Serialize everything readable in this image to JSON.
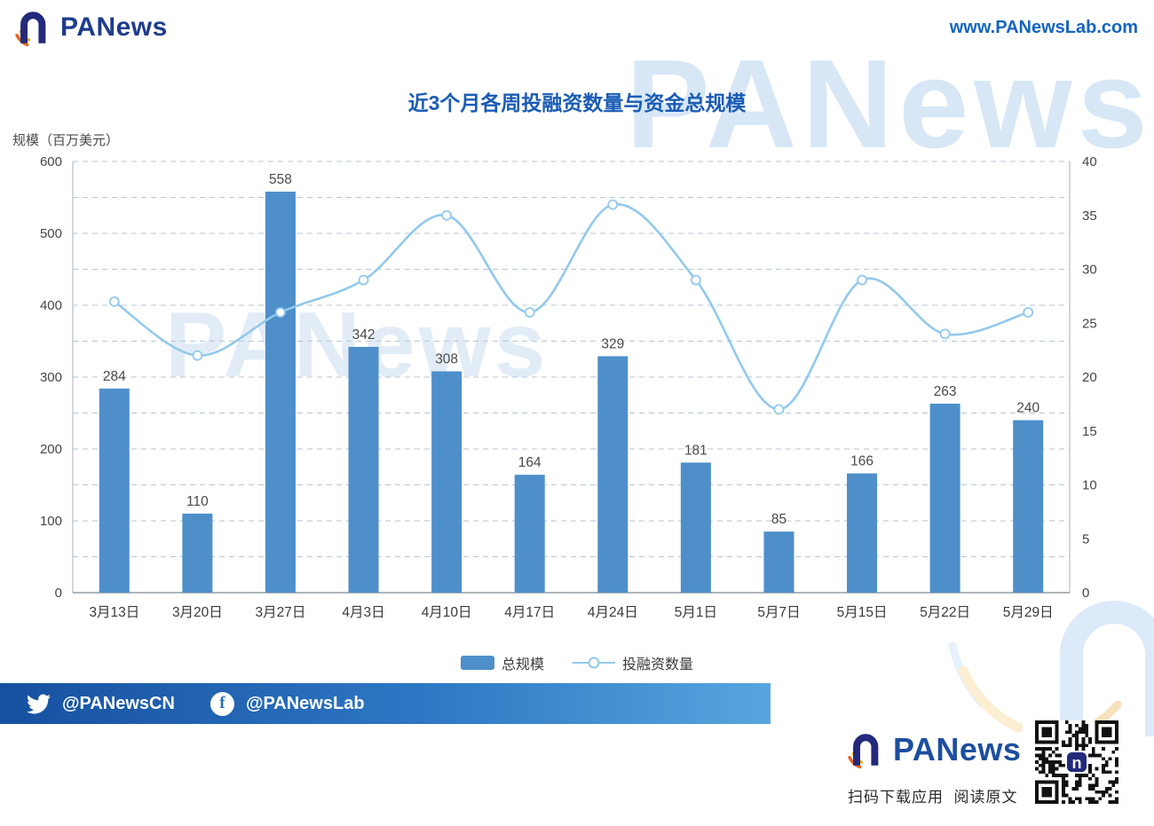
{
  "header": {
    "brand": "PANews",
    "url": "www.PANewsLab.com"
  },
  "watermarks": {
    "top": "PANews",
    "chart": "PANews"
  },
  "chart_data": {
    "type": "bar",
    "title": "近3个月各周投融资数量与资金总规模",
    "grid": true,
    "legend_position": "bottom",
    "left_axis": {
      "unit_label": "规模（百万美元）",
      "min": 0,
      "max": 600,
      "tick_step": 100,
      "grid_step": 50
    },
    "right_axis": {
      "min": 0,
      "max": 40,
      "tick_step": 5
    },
    "categories": [
      "3月13日",
      "3月20日",
      "3月27日",
      "4月3日",
      "4月10日",
      "4月17日",
      "4月24日",
      "5月1日",
      "5月7日",
      "5月15日",
      "5月22日",
      "5月29日"
    ],
    "series": [
      {
        "name": "总规模",
        "type": "bar",
        "axis": "left",
        "color": "#4e8fca",
        "values": [
          284,
          110,
          558,
          342,
          308,
          164,
          329,
          181,
          85,
          166,
          263,
          240
        ]
      },
      {
        "name": "投融资数量",
        "type": "line",
        "axis": "right",
        "color": "#92c9ec",
        "values": [
          27,
          22,
          26,
          29,
          35,
          26,
          36,
          29,
          17,
          29,
          24,
          26
        ]
      }
    ]
  },
  "footer": {
    "twitter_handle": "@PANewsCN",
    "facebook_handle": "@PANewsLab"
  },
  "bottom": {
    "caption": "扫码下载应用  阅读原文"
  },
  "colors": {
    "accent_blue": "#1a5cb5",
    "brand_navy": "#232a7c",
    "bar": "#4e8fca",
    "line": "#92c9ec",
    "footer_gradient_start": "#16509f",
    "footer_gradient_end": "#58a5de"
  }
}
